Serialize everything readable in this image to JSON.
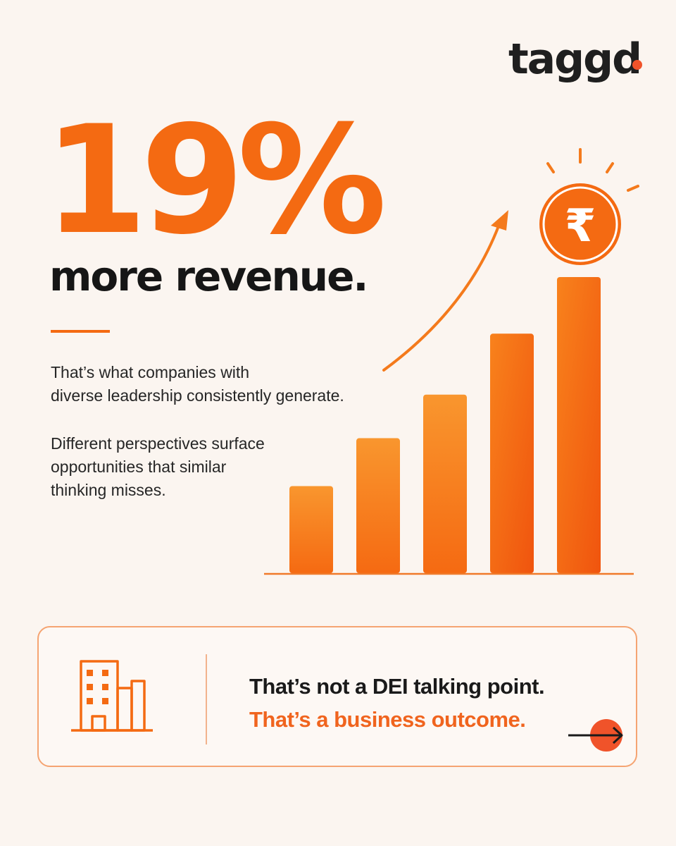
{
  "brand": {
    "logo_text": "taggd",
    "accent_color": "#F46A12",
    "dot_color": "#F0532A"
  },
  "hero": {
    "stat": "19%",
    "headline": "more revenue."
  },
  "body": {
    "paragraph1_line1": "That’s what companies with",
    "paragraph1_line2": "diverse leadership consistently generate.",
    "paragraph2_line1": "Different perspectives surface",
    "paragraph2_line2": "opportunities that similar",
    "paragraph2_line3": "thinking misses."
  },
  "chart_data": {
    "type": "bar",
    "categories": [
      "",
      "",
      "",
      "",
      ""
    ],
    "values": [
      1,
      1.55,
      2.05,
      2.75,
      3.4
    ],
    "ylim": [
      0,
      3.4
    ],
    "trend": "rising",
    "icons": [
      "upward-trend-arrow",
      "rupee-coin-icon"
    ],
    "bar_color": "#F7811F"
  },
  "callout": {
    "line1": "That’s not a DEI talking point.",
    "line2": "That’s a business outcome.",
    "icon": "building-icon",
    "action_icon": "arrow-right-circle-icon"
  }
}
